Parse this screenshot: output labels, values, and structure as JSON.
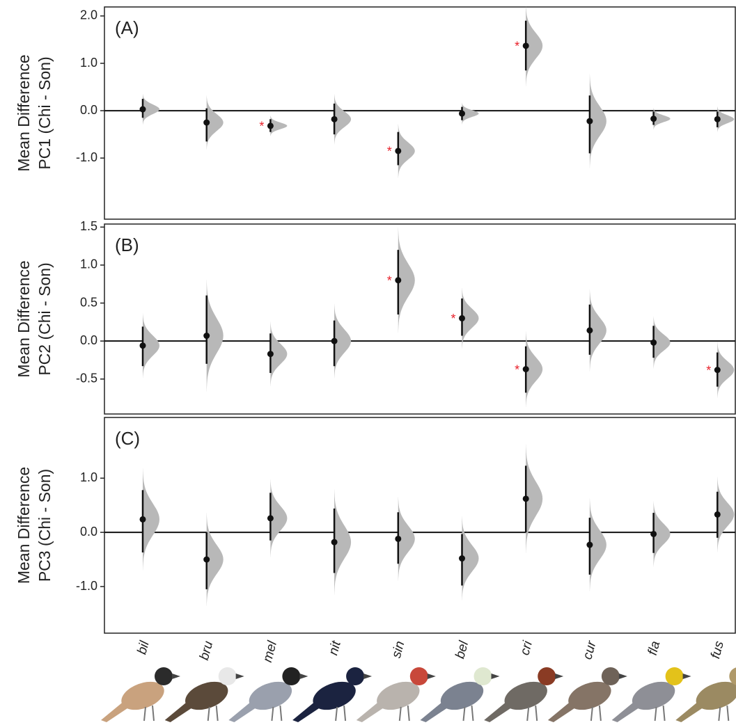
{
  "categories": [
    "bil",
    "bru",
    "mel",
    "nit",
    "sin",
    "bel",
    "cri",
    "cur",
    "fla",
    "fus"
  ],
  "chart_data": [
    {
      "type": "errorbar",
      "panel_label": "(A)",
      "ylabel": [
        "Mean Difference",
        "PC1 (Chi - Son)"
      ],
      "annotation": "*",
      "values": [
        0.03,
        -0.25,
        -0.32,
        -0.18,
        -0.85,
        -0.06,
        1.37,
        -0.22,
        -0.17,
        -0.18
      ],
      "ci_low": [
        -0.15,
        -0.65,
        -0.45,
        -0.5,
        -1.15,
        -0.2,
        0.85,
        -0.9,
        -0.3,
        -0.35
      ],
      "ci_high": [
        0.25,
        0.05,
        -0.18,
        0.15,
        -0.45,
        0.08,
        1.9,
        0.32,
        -0.02,
        -0.02
      ],
      "significant": [
        false,
        false,
        true,
        false,
        true,
        false,
        true,
        false,
        false,
        false
      ],
      "color": "#111111",
      "violin_color": "#b8b8b8",
      "ylim": [
        -2.29,
        2.19
      ],
      "yticks": [
        {
          "value": -1,
          "label": "-1.0"
        },
        {
          "value": 0,
          "label": "0.0"
        },
        {
          "value": 1,
          "label": "1.0"
        },
        {
          "value": 2,
          "label": "2.0"
        }
      ]
    },
    {
      "type": "errorbar",
      "panel_label": "(B)",
      "ylabel": [
        "Mean Difference",
        "PC2 (Chi - Son)"
      ],
      "annotation": "*",
      "values": [
        -0.06,
        0.07,
        -0.17,
        0.0,
        0.8,
        0.3,
        -0.37,
        0.14,
        -0.02,
        -0.38
      ],
      "ci_low": [
        -0.33,
        -0.3,
        -0.42,
        -0.33,
        0.35,
        0.07,
        -0.68,
        -0.18,
        -0.22,
        -0.6
      ],
      "ci_high": [
        0.19,
        0.6,
        0.1,
        0.27,
        1.2,
        0.56,
        -0.07,
        0.48,
        0.2,
        -0.15
      ],
      "significant": [
        false,
        false,
        false,
        false,
        true,
        true,
        true,
        false,
        false,
        true
      ],
      "color": "#111111",
      "violin_color": "#b8b8b8",
      "ylim": [
        -0.96,
        1.54
      ],
      "yticks": [
        -0.5,
        {
          "value": 0,
          "label": "0.0"
        },
        0.5,
        {
          "value": 1,
          "label": "1.0"
        },
        1.5
      ]
    },
    {
      "type": "errorbar",
      "panel_label": "(C)",
      "ylabel": [
        "Mean Difference",
        "PC3 (Chi - Son)"
      ],
      "annotation": "*",
      "values": [
        0.24,
        -0.5,
        0.26,
        -0.18,
        -0.12,
        -0.48,
        0.62,
        -0.23,
        -0.03,
        0.33
      ],
      "ci_low": [
        -0.37,
        -1.05,
        -0.15,
        -0.75,
        -0.58,
        -0.98,
        0.0,
        -0.78,
        -0.38,
        -0.1
      ],
      "ci_high": [
        0.78,
        0.0,
        0.73,
        0.44,
        0.37,
        -0.03,
        1.23,
        0.27,
        0.36,
        0.75
      ],
      "significant": [
        false,
        false,
        false,
        false,
        false,
        false,
        false,
        false,
        false,
        false
      ],
      "color": "#111111",
      "violin_color": "#b8b8b8",
      "ylim": [
        -1.86,
        2.12
      ],
      "yticks": [
        {
          "value": -1,
          "label": "-1.0"
        },
        {
          "value": 0,
          "label": "0.0"
        },
        {
          "value": 1,
          "label": "1.0"
        }
      ]
    }
  ]
}
